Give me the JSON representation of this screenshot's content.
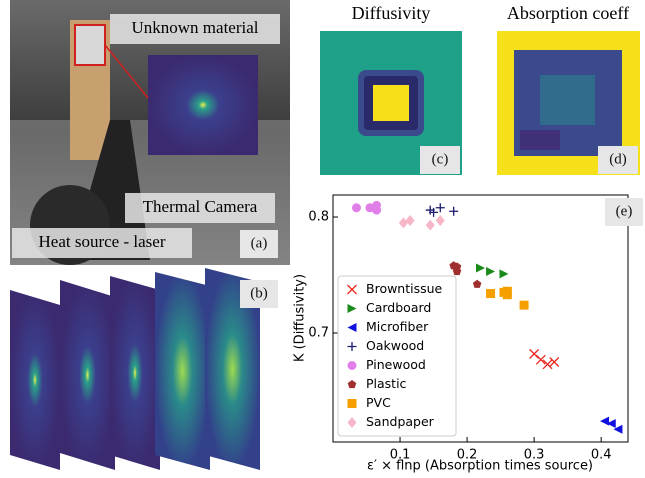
{
  "photo": {
    "labels": [
      "Unknown material",
      "Thermal Camera",
      "Heat source - laser"
    ],
    "panel": "(a)"
  },
  "frames": {
    "panel": "(b)"
  },
  "maps": [
    {
      "title": "Diffusivity",
      "panel": "(c)"
    },
    {
      "title": "Absorption coeff",
      "panel": "(d)"
    }
  ],
  "chart_data": {
    "type": "scatter",
    "panel": "(e)",
    "x_label": "ε′ × flnp (Absorption times source)",
    "y_label": "K (Diffusivity)",
    "xlim": [
      0,
      0.44
    ],
    "ylim": [
      0.606,
      0.819
    ],
    "xticks": [
      0.1,
      0.2,
      0.3,
      0.4
    ],
    "yticks": [
      0.7,
      0.8
    ],
    "legend": "lower left",
    "series": [
      {
        "name": "Browntissue",
        "color": "#e8281e",
        "marker": "x",
        "x": [
          0.3,
          0.31,
          0.32,
          0.33
        ],
        "values": [
          0.682,
          0.677,
          0.673,
          0.675
        ]
      },
      {
        "name": "Cardboard",
        "color": "#1a8a1a",
        "marker": "triangle-right",
        "x": [
          0.22,
          0.235,
          0.255
        ],
        "values": [
          0.756,
          0.753,
          0.751
        ]
      },
      {
        "name": "Microfiber",
        "color": "#1010e0",
        "marker": "triangle-left",
        "x": [
          0.405,
          0.415,
          0.425
        ],
        "values": [
          0.624,
          0.622,
          0.617
        ]
      },
      {
        "name": "Oakwood",
        "color": "#1a1a6e",
        "marker": "plus",
        "x": [
          0.145,
          0.15,
          0.16,
          0.18
        ],
        "values": [
          0.806,
          0.804,
          0.808,
          0.805
        ]
      },
      {
        "name": "Pinewood",
        "color": "#e07fe8",
        "marker": "circle",
        "x": [
          0.035,
          0.055,
          0.065,
          0.065
        ],
        "values": [
          0.808,
          0.808,
          0.81,
          0.806
        ]
      },
      {
        "name": "Plastic",
        "color": "#a03030",
        "marker": "pentagon",
        "x": [
          0.18,
          0.185,
          0.185,
          0.215
        ],
        "values": [
          0.758,
          0.753,
          0.757,
          0.742
        ]
      },
      {
        "name": "PVC",
        "color": "#f5a000",
        "marker": "square",
        "x": [
          0.235,
          0.255,
          0.26,
          0.26,
          0.285
        ],
        "values": [
          0.734,
          0.735,
          0.736,
          0.733,
          0.724
        ]
      },
      {
        "name": "Sandpaper",
        "color": "#f7b5c8",
        "marker": "diamond",
        "x": [
          0.105,
          0.115,
          0.145,
          0.16
        ],
        "values": [
          0.795,
          0.797,
          0.793,
          0.797
        ]
      }
    ]
  }
}
